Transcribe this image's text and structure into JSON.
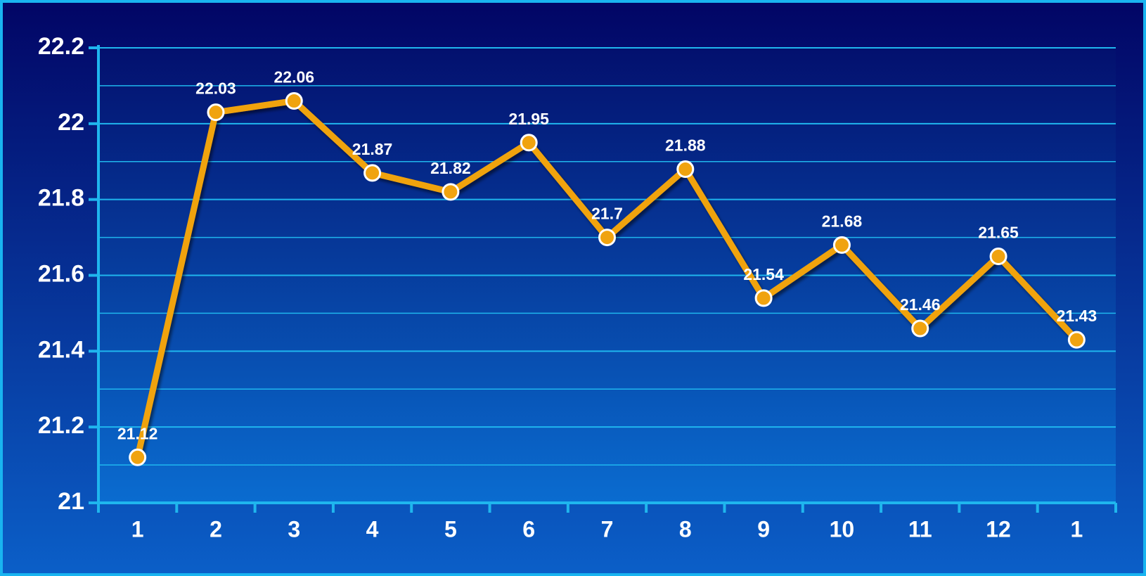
{
  "chart_data": {
    "type": "line",
    "categories": [
      "1",
      "2",
      "3",
      "4",
      "5",
      "6",
      "7",
      "8",
      "9",
      "10",
      "11",
      "12",
      "1"
    ],
    "series": [
      {
        "name": null,
        "color": "#f0a30f",
        "values": [
          21.12,
          22.03,
          22.06,
          21.87,
          21.82,
          21.95,
          21.7,
          21.88,
          21.54,
          21.68,
          21.46,
          21.65,
          21.43
        ]
      }
    ],
    "ylim": [
      21,
      22.2
    ],
    "yticks": [
      21,
      21.2,
      21.4,
      21.6,
      21.8,
      22,
      22.2
    ],
    "grid": true
  }
}
